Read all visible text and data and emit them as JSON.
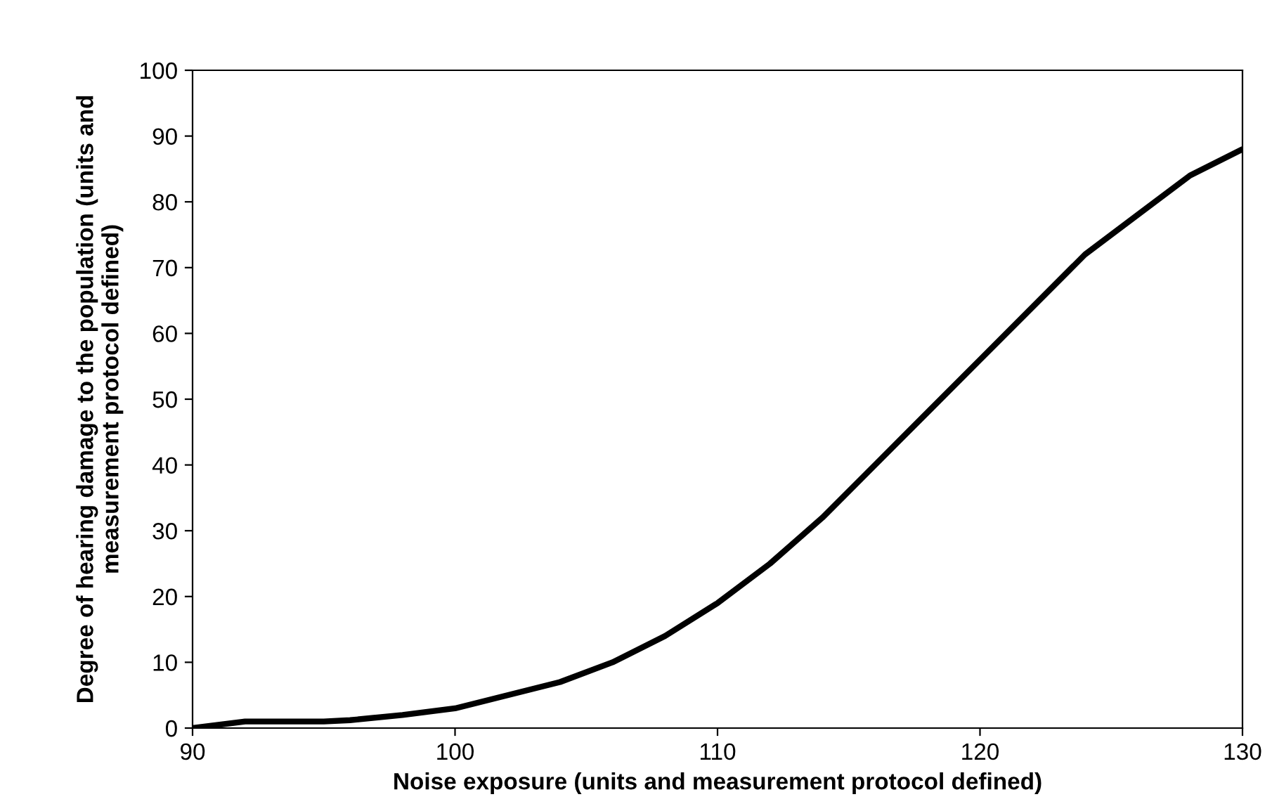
{
  "chart_data": {
    "type": "line",
    "xlabel": "Noise exposure (units and measurement protocol defined)",
    "ylabel": "Degree of hearing damage to the population (units and\nmeasurement protocol defined)",
    "x": [
      90,
      92,
      93,
      95,
      96,
      98,
      100,
      102,
      104,
      106,
      108,
      110,
      112,
      114,
      116,
      118,
      120,
      122,
      124,
      126,
      128,
      130
    ],
    "series": [
      {
        "color": "#000000",
        "values": [
          0,
          1,
          1,
          1,
          1.2,
          2,
          3,
          5,
          7,
          10,
          14,
          19,
          25,
          32,
          40,
          48,
          56,
          64,
          72,
          78,
          84,
          88
        ]
      }
    ],
    "xlim": [
      90,
      130
    ],
    "xticks": [
      90,
      100,
      110,
      120,
      130
    ],
    "ylim": [
      0,
      100
    ],
    "yticks": [
      0,
      10,
      20,
      30,
      40,
      50,
      60,
      70,
      80,
      90,
      100
    ],
    "grid": false,
    "legend": false,
    "marker": "none",
    "line_style": "solid"
  }
}
